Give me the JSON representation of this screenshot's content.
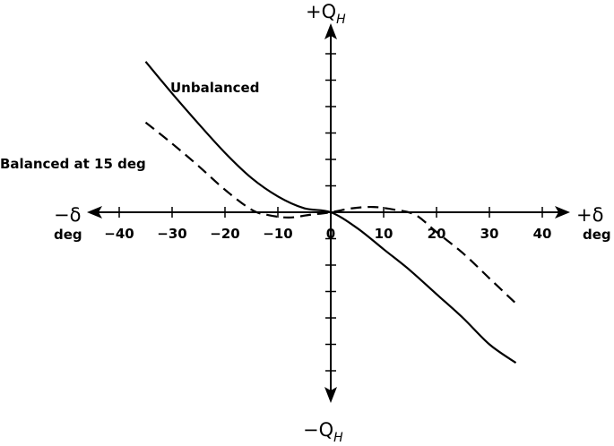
{
  "chart_data": {
    "type": "line",
    "x_axis": {
      "plus_label": "+δ",
      "minus_label": "−δ",
      "plus_unit": "deg",
      "minus_unit": "deg",
      "ticks": [
        -40,
        -30,
        -20,
        -10,
        0,
        10,
        20,
        30,
        40
      ],
      "tick_labels": [
        "−40",
        "−30",
        "−20",
        "−10",
        "0",
        "10",
        "20",
        "30",
        "40"
      ],
      "xlim": [
        -45,
        45
      ]
    },
    "y_axis": {
      "plus_label": "+Q",
      "plus_sub": "H",
      "minus_label": "−Q",
      "minus_sub": "H",
      "tick_count_each_side": 6,
      "tick_labels": [],
      "ylim": [
        -7,
        7
      ]
    },
    "grid": false,
    "series": [
      {
        "name": "Unbalanced",
        "style": "solid",
        "x": [
          -35,
          -30,
          -25,
          -20,
          -15,
          -10,
          -5,
          0,
          5,
          10,
          15,
          20,
          25,
          30,
          35
        ],
        "y": [
          5.7,
          4.5,
          3.35,
          2.25,
          1.3,
          0.6,
          0.15,
          0,
          -0.6,
          -1.4,
          -2.2,
          -3.1,
          -4.0,
          -5.0,
          -5.7
        ]
      },
      {
        "name": "Balanced at 15 deg",
        "style": "dashed",
        "x": [
          -35,
          -30,
          -25,
          -20,
          -15,
          -12,
          -8,
          -4,
          0,
          4,
          8,
          12,
          16,
          20,
          25,
          30,
          35
        ],
        "y": [
          3.4,
          2.6,
          1.75,
          0.85,
          0.1,
          -0.1,
          -0.2,
          -0.1,
          0,
          0.15,
          0.2,
          0.1,
          -0.1,
          -0.75,
          -1.55,
          -2.5,
          -3.45
        ]
      }
    ],
    "annotations": [
      {
        "text": "Unbalanced",
        "series": "Unbalanced"
      },
      {
        "text": "Balanced at 15 deg",
        "series": "Balanced at 15 deg"
      }
    ]
  }
}
